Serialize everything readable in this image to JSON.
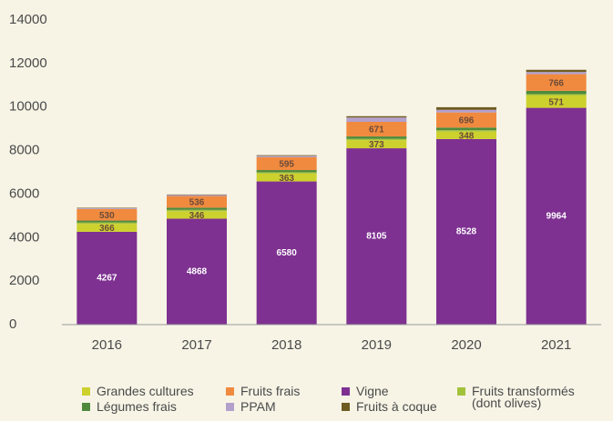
{
  "chart_data": {
    "type": "stacked_bar",
    "categories": [
      "2016",
      "2017",
      "2018",
      "2019",
      "2020",
      "2021"
    ],
    "series": [
      {
        "name": "Vigne",
        "color": "#7e3191",
        "values": [
          4267,
          4868,
          6580,
          8105,
          8528,
          9964
        ],
        "show_labels": true
      },
      {
        "name": "Grandes cultures",
        "color": "#cdd12e",
        "values": [
          366,
          346,
          363,
          373,
          348,
          571
        ],
        "show_labels": true
      },
      {
        "name": "Fruits transformés (dont olives)",
        "color": "#a3c23c",
        "values": [
          60,
          60,
          60,
          60,
          60,
          60
        ]
      },
      {
        "name": "Légumes frais",
        "color": "#4f8a3c",
        "values": [
          90,
          100,
          100,
          110,
          120,
          150
        ]
      },
      {
        "name": "Fruits frais",
        "color": "#f08a3e",
        "values": [
          530,
          536,
          595,
          671,
          696,
          766
        ],
        "show_labels": true
      },
      {
        "name": "PPAM",
        "color": "#b3a0cc",
        "values": [
          40,
          50,
          60,
          200,
          120,
          100
        ]
      },
      {
        "name": "Fruits à coque",
        "color": "#6e5b20",
        "values": [
          20,
          20,
          30,
          60,
          120,
          100
        ]
      }
    ],
    "ylim": [
      0,
      14000
    ],
    "yticks": [
      0,
      2000,
      4000,
      6000,
      8000,
      10000,
      12000,
      14000
    ],
    "grid": false
  }
}
